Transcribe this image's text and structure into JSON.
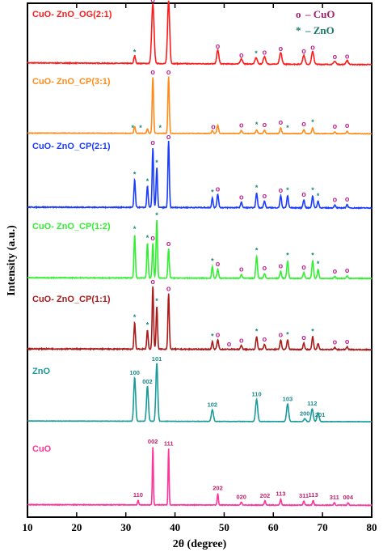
{
  "chart_data": {
    "type": "line",
    "xlabel": "2θ (degree)",
    "ylabel": "Intensity (a.u.)",
    "xlim": [
      10,
      80
    ],
    "x_ticks": [
      "10",
      "20",
      "30",
      "40",
      "50",
      "60",
      "70",
      "80"
    ],
    "legend": [
      {
        "symbol": "o",
        "label": "– CuO",
        "color": "#a0206a"
      },
      {
        "symbol": "*",
        "label": "– ZnO",
        "color": "#1a7a6a"
      }
    ],
    "series": [
      {
        "name": "CuO- ZnO_OG(2:1)",
        "color": "#ff1a1a",
        "baseline": 0.92,
        "noise": 0.012,
        "peaks": [
          [
            31.8,
            0.12,
            0.35
          ],
          [
            35.5,
            0.95,
            0.5
          ],
          [
            38.7,
            1.0,
            0.45
          ],
          [
            48.7,
            0.22,
            0.45
          ],
          [
            53.5,
            0.08,
            0.5
          ],
          [
            56.5,
            0.1,
            0.5
          ],
          [
            58.2,
            0.12,
            0.5
          ],
          [
            61.5,
            0.18,
            0.5
          ],
          [
            66.2,
            0.14,
            0.5
          ],
          [
            68.0,
            0.2,
            0.5
          ],
          [
            72.5,
            0.05,
            0.5
          ],
          [
            75.0,
            0.06,
            0.5
          ]
        ]
      },
      {
        "name": "CuO- ZnO_CP(3:1)",
        "color": "#ff8c1a",
        "baseline": 0.38,
        "noise": 0.008,
        "peaks": [
          [
            31.8,
            0.12,
            0.3
          ],
          [
            34.4,
            0.08,
            0.3
          ],
          [
            35.5,
            1.0,
            0.3
          ],
          [
            38.7,
            1.0,
            0.3
          ],
          [
            47.6,
            0.05,
            0.3
          ],
          [
            48.7,
            0.15,
            0.35
          ],
          [
            53.5,
            0.05,
            0.35
          ],
          [
            56.6,
            0.06,
            0.35
          ],
          [
            58.2,
            0.06,
            0.35
          ],
          [
            61.5,
            0.1,
            0.35
          ],
          [
            66.2,
            0.07,
            0.35
          ],
          [
            68.0,
            0.1,
            0.35
          ],
          [
            72.5,
            0.03,
            0.35
          ],
          [
            75.0,
            0.04,
            0.35
          ]
        ]
      },
      {
        "name": "CuO- ZnO_CP(2:1)",
        "color": "#1a3cff",
        "baseline": 0.42,
        "noise": 0.012,
        "peaks": [
          [
            31.8,
            0.42,
            0.3
          ],
          [
            34.4,
            0.32,
            0.3
          ],
          [
            35.5,
            0.9,
            0.3
          ],
          [
            36.3,
            0.6,
            0.3
          ],
          [
            38.7,
            1.0,
            0.3
          ],
          [
            47.6,
            0.15,
            0.3
          ],
          [
            48.7,
            0.2,
            0.35
          ],
          [
            53.5,
            0.08,
            0.35
          ],
          [
            56.6,
            0.22,
            0.35
          ],
          [
            58.2,
            0.1,
            0.35
          ],
          [
            61.5,
            0.18,
            0.35
          ],
          [
            62.9,
            0.18,
            0.35
          ],
          [
            66.2,
            0.12,
            0.35
          ],
          [
            68.0,
            0.18,
            0.35
          ],
          [
            69.1,
            0.1,
            0.35
          ],
          [
            72.5,
            0.04,
            0.35
          ],
          [
            75.0,
            0.05,
            0.35
          ]
        ]
      },
      {
        "name": "CuO- ZnO_CP(1:2)",
        "color": "#33ee33",
        "baseline": 0.42,
        "noise": 0.012,
        "peaks": [
          [
            31.8,
            0.75,
            0.3
          ],
          [
            34.4,
            0.6,
            0.3
          ],
          [
            35.5,
            0.6,
            0.3
          ],
          [
            36.3,
            1.0,
            0.3
          ],
          [
            38.7,
            0.5,
            0.3
          ],
          [
            47.6,
            0.2,
            0.3
          ],
          [
            48.7,
            0.15,
            0.35
          ],
          [
            53.5,
            0.06,
            0.35
          ],
          [
            56.6,
            0.38,
            0.35
          ],
          [
            58.2,
            0.08,
            0.35
          ],
          [
            61.5,
            0.12,
            0.35
          ],
          [
            62.9,
            0.3,
            0.35
          ],
          [
            66.2,
            0.1,
            0.35
          ],
          [
            68.0,
            0.3,
            0.35
          ],
          [
            69.1,
            0.15,
            0.35
          ],
          [
            72.5,
            0.03,
            0.35
          ],
          [
            75.0,
            0.04,
            0.35
          ]
        ]
      },
      {
        "name": "CuO- ZnO_CP(1:1)",
        "color": "#aa1a1a",
        "baseline": 0.42,
        "noise": 0.014,
        "peaks": [
          [
            31.8,
            0.42,
            0.3
          ],
          [
            34.4,
            0.3,
            0.3
          ],
          [
            35.5,
            1.0,
            0.3
          ],
          [
            36.3,
            0.68,
            0.3
          ],
          [
            38.7,
            0.88,
            0.3
          ],
          [
            47.6,
            0.12,
            0.3
          ],
          [
            48.7,
            0.15,
            0.35
          ],
          [
            53.5,
            0.06,
            0.35
          ],
          [
            56.6,
            0.2,
            0.35
          ],
          [
            58.2,
            0.08,
            0.35
          ],
          [
            61.5,
            0.15,
            0.35
          ],
          [
            62.9,
            0.15,
            0.35
          ],
          [
            66.2,
            0.1,
            0.35
          ],
          [
            68.0,
            0.2,
            0.35
          ],
          [
            69.1,
            0.1,
            0.35
          ],
          [
            72.5,
            0.03,
            0.35
          ],
          [
            75.0,
            0.04,
            0.35
          ]
        ]
      },
      {
        "name": "ZnO",
        "color": "#1a9a9a",
        "baseline": 0.42,
        "noise": 0.006,
        "peaks": [
          [
            31.8,
            0.75,
            0.4
          ],
          [
            34.4,
            0.6,
            0.4
          ],
          [
            36.3,
            1.0,
            0.4
          ],
          [
            47.6,
            0.2,
            0.45
          ],
          [
            56.6,
            0.38,
            0.45
          ],
          [
            62.9,
            0.3,
            0.45
          ],
          [
            66.4,
            0.05,
            0.45
          ],
          [
            67.9,
            0.22,
            0.45
          ],
          [
            69.1,
            0.15,
            0.45
          ]
        ]
      },
      {
        "name": "CuO",
        "color": "#ff3399",
        "baseline": 0.32,
        "noise": 0.01,
        "peaks": [
          [
            32.5,
            0.08,
            0.25
          ],
          [
            35.5,
            1.0,
            0.22
          ],
          [
            38.7,
            0.95,
            0.22
          ],
          [
            48.7,
            0.2,
            0.25
          ],
          [
            53.5,
            0.05,
            0.3
          ],
          [
            58.3,
            0.07,
            0.3
          ],
          [
            61.5,
            0.1,
            0.3
          ],
          [
            66.2,
            0.07,
            0.3
          ],
          [
            68.1,
            0.08,
            0.3
          ],
          [
            72.4,
            0.04,
            0.3
          ],
          [
            75.2,
            0.04,
            0.3
          ]
        ]
      }
    ],
    "annotations": [
      {
        "series": 0,
        "marks": [
          {
            "x": 35.5,
            "t": "o"
          },
          {
            "x": 38.7,
            "t": "o"
          },
          {
            "x": 31.8,
            "t": "*"
          },
          {
            "x": 48.7,
            "t": "o"
          },
          {
            "x": 53.5,
            "t": "o"
          },
          {
            "x": 56.5,
            "t": "*"
          },
          {
            "x": 58.2,
            "t": "o"
          },
          {
            "x": 61.5,
            "t": "o"
          },
          {
            "x": 66.2,
            "t": "o"
          },
          {
            "x": 68.0,
            "t": "o"
          },
          {
            "x": 72.5,
            "t": "o"
          },
          {
            "x": 75.0,
            "t": "o"
          }
        ]
      },
      {
        "series": 1,
        "marks": [
          {
            "x": 35.5,
            "t": "o"
          },
          {
            "x": 38.7,
            "t": "o"
          },
          {
            "x": 31.4,
            "t": "*"
          },
          {
            "x": 33.0,
            "t": "*"
          },
          {
            "x": 37.0,
            "t": "*"
          },
          {
            "x": 47.8,
            "t": "o"
          },
          {
            "x": 53.5,
            "t": "o"
          },
          {
            "x": 56.6,
            "t": "*"
          },
          {
            "x": 58.2,
            "t": "o"
          },
          {
            "x": 61.5,
            "t": "o"
          },
          {
            "x": 62.9,
            "t": "*"
          },
          {
            "x": 66.2,
            "t": "o"
          },
          {
            "x": 68.0,
            "t": "*"
          },
          {
            "x": 72.5,
            "t": "o"
          },
          {
            "x": 75.0,
            "t": "o"
          }
        ]
      },
      {
        "series": 2,
        "marks": [
          {
            "x": 35.5,
            "t": "o"
          },
          {
            "x": 38.7,
            "t": "o"
          },
          {
            "x": 31.8,
            "t": "*"
          },
          {
            "x": 34.4,
            "t": "*"
          },
          {
            "x": 36.3,
            "t": "*"
          },
          {
            "x": 47.6,
            "t": "*"
          },
          {
            "x": 48.7,
            "t": "o"
          },
          {
            "x": 53.5,
            "t": "o"
          },
          {
            "x": 56.6,
            "t": "*"
          },
          {
            "x": 58.2,
            "t": "o"
          },
          {
            "x": 61.5,
            "t": "o"
          },
          {
            "x": 62.9,
            "t": "*"
          },
          {
            "x": 66.2,
            "t": "o"
          },
          {
            "x": 68.0,
            "t": "*"
          },
          {
            "x": 69.1,
            "t": "*"
          },
          {
            "x": 72.5,
            "t": "o"
          },
          {
            "x": 75.0,
            "t": "o"
          }
        ]
      },
      {
        "series": 3,
        "marks": [
          {
            "x": 31.8,
            "t": "*"
          },
          {
            "x": 34.4,
            "t": "*"
          },
          {
            "x": 35.5,
            "t": "o"
          },
          {
            "x": 36.3,
            "t": "*"
          },
          {
            "x": 38.7,
            "t": "o"
          },
          {
            "x": 47.6,
            "t": "*"
          },
          {
            "x": 48.7,
            "t": "o"
          },
          {
            "x": 53.5,
            "t": "o"
          },
          {
            "x": 56.6,
            "t": "*"
          },
          {
            "x": 58.2,
            "t": "o"
          },
          {
            "x": 61.5,
            "t": "o"
          },
          {
            "x": 62.9,
            "t": "*"
          },
          {
            "x": 66.2,
            "t": "o"
          },
          {
            "x": 68.0,
            "t": "*"
          },
          {
            "x": 69.1,
            "t": "*"
          },
          {
            "x": 72.5,
            "t": "o"
          },
          {
            "x": 75.0,
            "t": "o"
          }
        ]
      },
      {
        "series": 4,
        "marks": [
          {
            "x": 31.8,
            "t": "*"
          },
          {
            "x": 34.4,
            "t": "*"
          },
          {
            "x": 35.5,
            "t": "o"
          },
          {
            "x": 36.3,
            "t": "*"
          },
          {
            "x": 38.7,
            "t": "o"
          },
          {
            "x": 47.6,
            "t": "*"
          },
          {
            "x": 48.7,
            "t": "o"
          },
          {
            "x": 51.0,
            "t": "o"
          },
          {
            "x": 53.5,
            "t": "o"
          },
          {
            "x": 56.6,
            "t": "*"
          },
          {
            "x": 58.2,
            "t": "o"
          },
          {
            "x": 61.5,
            "t": "o"
          },
          {
            "x": 62.9,
            "t": "*"
          },
          {
            "x": 66.2,
            "t": "o"
          },
          {
            "x": 68.0,
            "t": "*"
          },
          {
            "x": 72.5,
            "t": "o"
          },
          {
            "x": 75.0,
            "t": "o"
          }
        ]
      },
      {
        "series": 5,
        "marks": [
          {
            "x": 31.8,
            "t": "100"
          },
          {
            "x": 34.4,
            "t": "002"
          },
          {
            "x": 36.3,
            "t": "101"
          },
          {
            "x": 47.6,
            "t": "102"
          },
          {
            "x": 56.6,
            "t": "110"
          },
          {
            "x": 62.9,
            "t": "103"
          },
          {
            "x": 66.4,
            "t": "200"
          },
          {
            "x": 67.9,
            "t": "112"
          },
          {
            "x": 69.5,
            "t": "201"
          }
        ]
      },
      {
        "series": 6,
        "marks": [
          {
            "x": 32.5,
            "t": "110"
          },
          {
            "x": 35.5,
            "t": "002"
          },
          {
            "x": 38.7,
            "t": "111"
          },
          {
            "x": 48.7,
            "t": "202"
          },
          {
            "x": 53.5,
            "t": "020"
          },
          {
            "x": 58.3,
            "t": "202"
          },
          {
            "x": 61.5,
            "t": "113"
          },
          {
            "x": 66.2,
            "t": "311"
          },
          {
            "x": 68.1,
            "t": "113"
          },
          {
            "x": 72.4,
            "t": "311"
          },
          {
            "x": 75.2,
            "t": "004"
          }
        ]
      }
    ]
  }
}
